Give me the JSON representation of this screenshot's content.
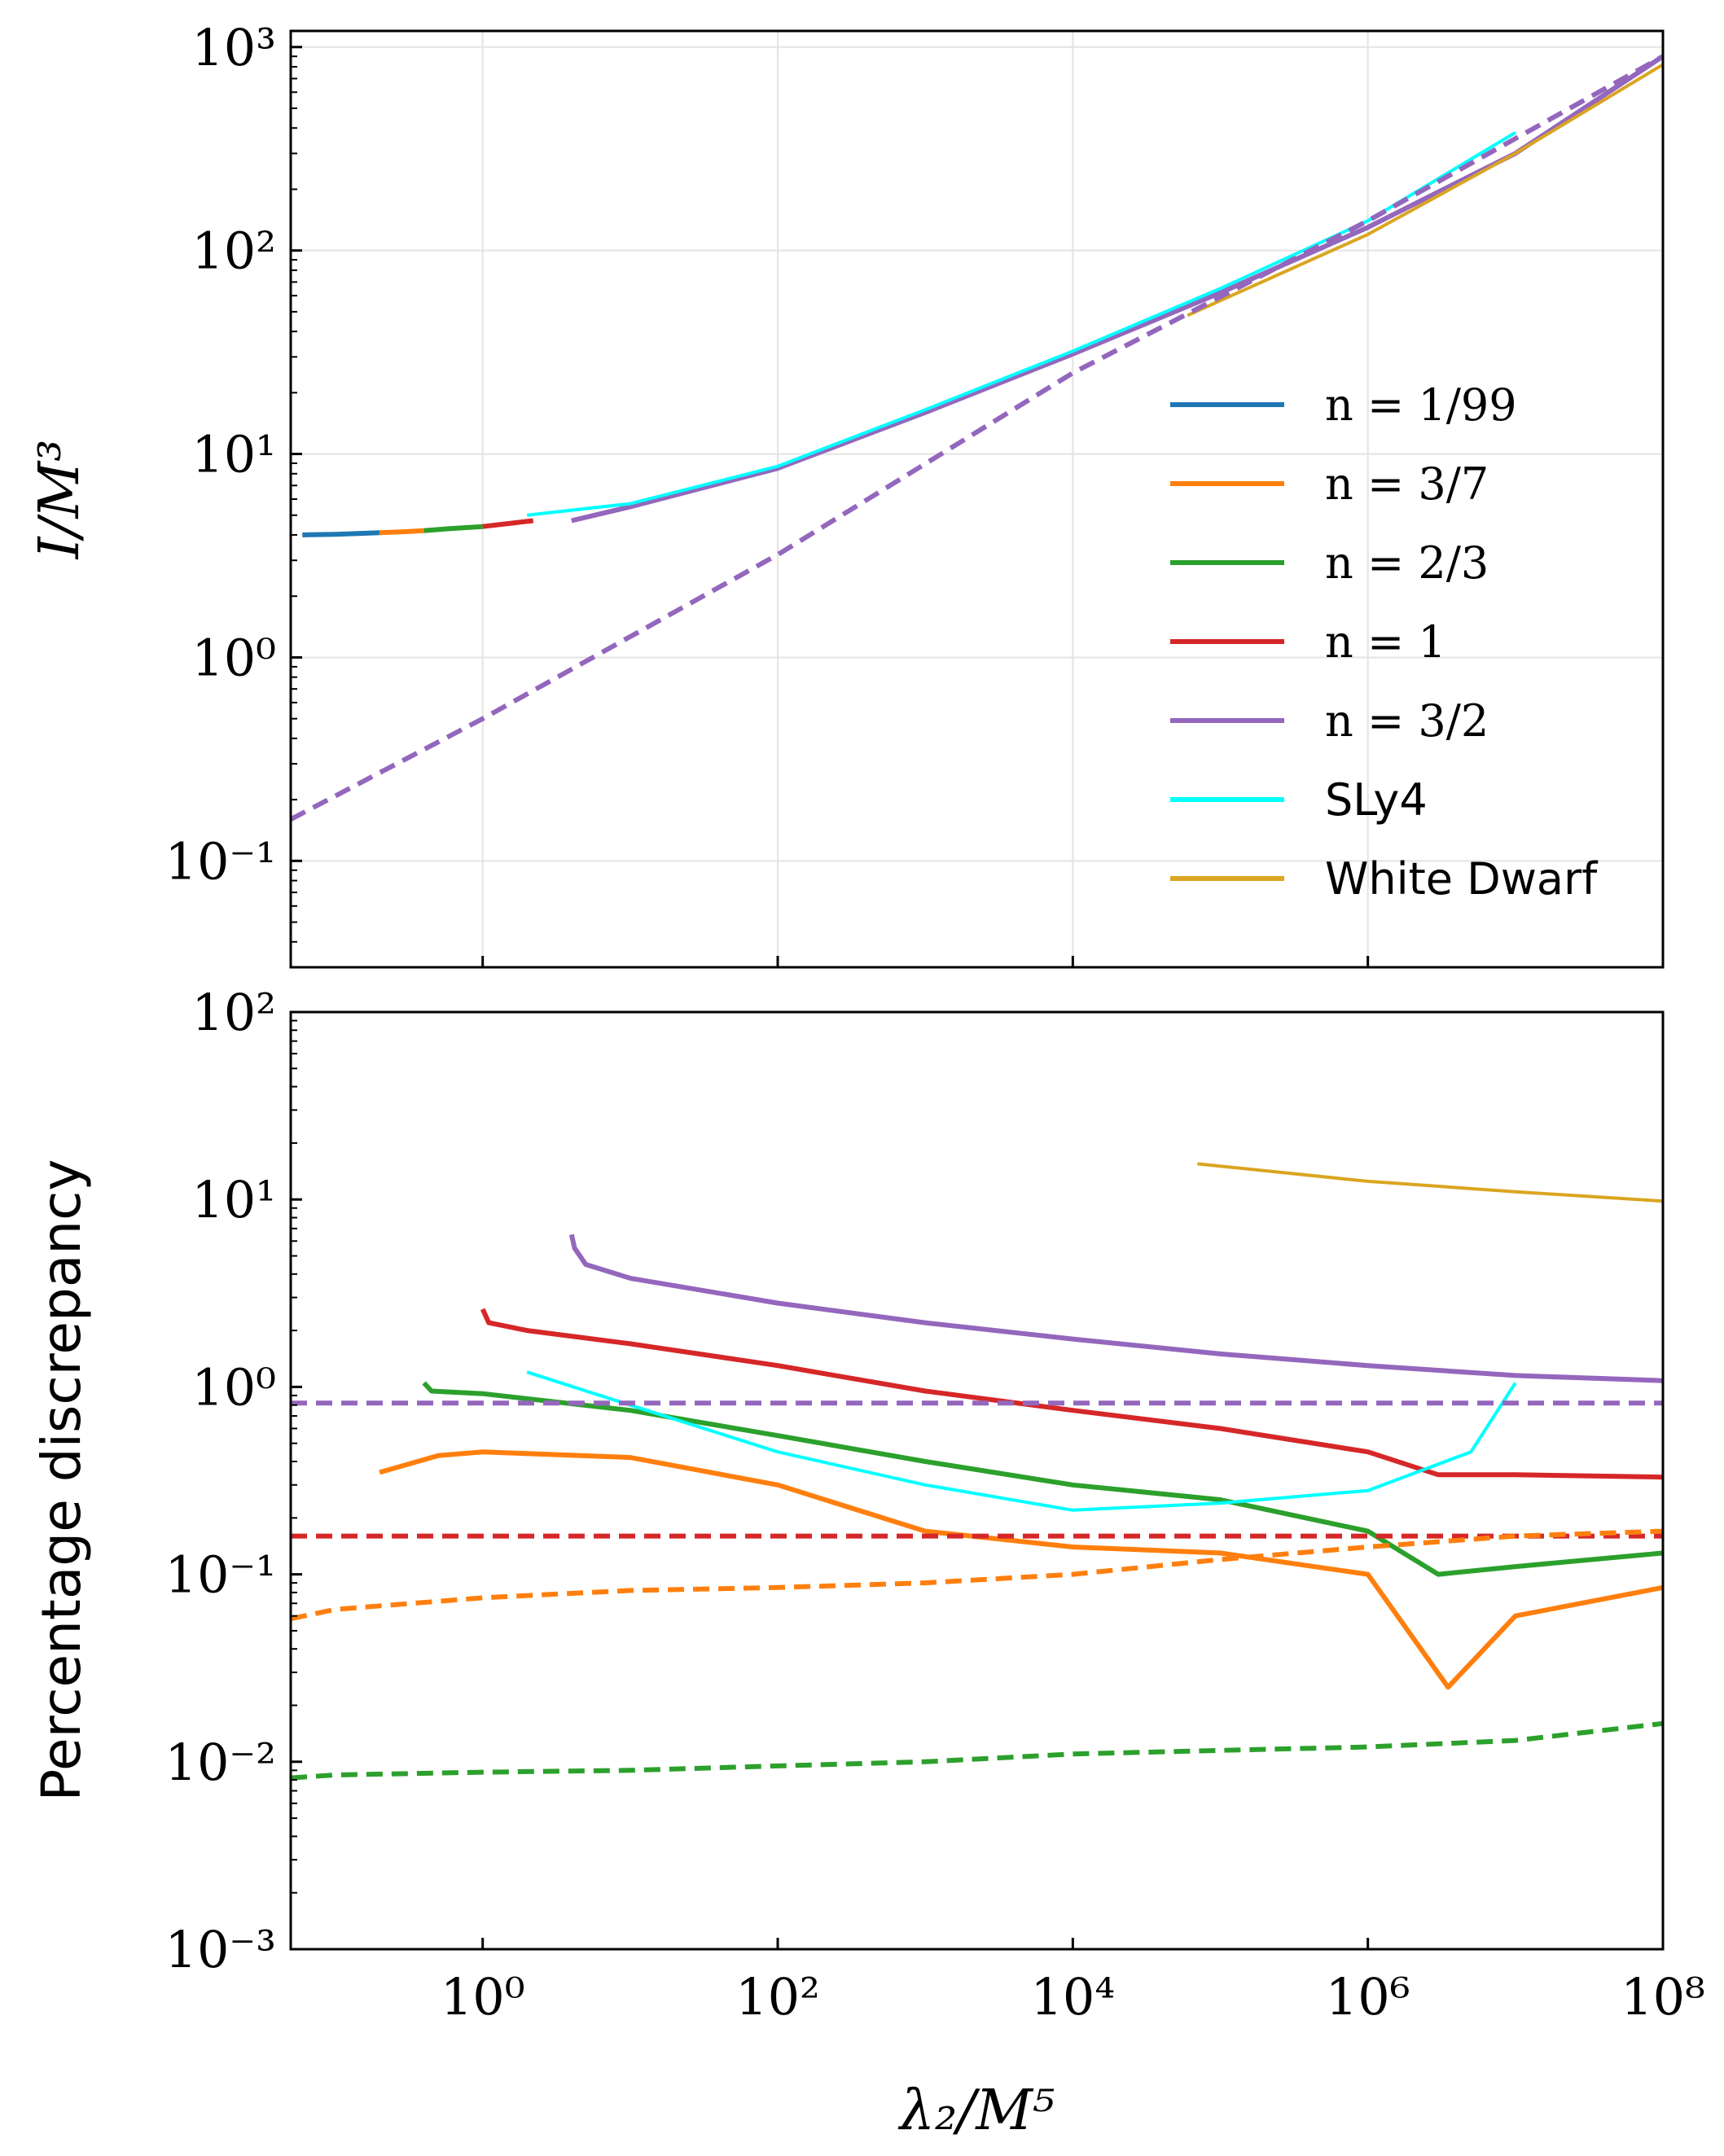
{
  "figure": {
    "x_axis_label": "λ₂/M⁵",
    "top_y_axis_label": "I/M³",
    "bottom_y_axis_label": "Percentage discrepancy"
  },
  "legend": [
    {
      "label": "n = 1/99",
      "color": "#1f77b4"
    },
    {
      "label": "n = 3/7",
      "color": "#ff7f0e"
    },
    {
      "label": "n = 2/3",
      "color": "#2ca02c"
    },
    {
      "label": "n = 1",
      "color": "#d62728"
    },
    {
      "label": "n = 3/2",
      "color": "#9467bd"
    },
    {
      "label": "SLy4",
      "color": "#00ffff"
    },
    {
      "label": "White Dwarf",
      "color": "#daa520"
    }
  ],
  "chart_data": [
    {
      "type": "line",
      "x_scale": "log",
      "y_scale": "log",
      "xlim": [
        0.05,
        100000000
      ],
      "ylim": [
        0.03,
        1200
      ],
      "grid": true,
      "legend_position": "center-right",
      "ylabel": "I/M³",
      "xlabel": "",
      "y_ticks": [
        "10⁻¹",
        "10⁰",
        "10¹",
        "10²",
        "10³"
      ],
      "series": [
        {
          "name": "n = 1/99",
          "color": "#1f77b4",
          "style": "solid",
          "x": [
            0.06,
            0.1,
            0.15,
            0.2
          ],
          "y": [
            4.0,
            4.03,
            4.07,
            4.1
          ]
        },
        {
          "name": "n = 3/7",
          "color": "#ff7f0e",
          "style": "solid",
          "x": [
            0.2,
            0.3,
            0.4
          ],
          "y": [
            4.1,
            4.15,
            4.2
          ]
        },
        {
          "name": "n = 2/3",
          "color": "#2ca02c",
          "style": "solid",
          "x": [
            0.4,
            0.6,
            1.0
          ],
          "y": [
            4.2,
            4.3,
            4.4
          ]
        },
        {
          "name": "n = 1",
          "color": "#d62728",
          "style": "solid",
          "x": [
            1.0,
            1.5,
            2.2
          ],
          "y": [
            4.4,
            4.55,
            4.7
          ]
        },
        {
          "name": "n = 3/2",
          "color": "#9467bd",
          "style": "solid",
          "x": [
            4,
            10,
            100,
            1000,
            10000,
            100000,
            1000000,
            10000000,
            100000000
          ],
          "y": [
            4.7,
            5.5,
            8.5,
            16,
            31,
            62,
            130,
            300,
            900
          ]
        },
        {
          "name": "SLy4",
          "color": "#00ffff",
          "style": "solid",
          "x": [
            2,
            10,
            100,
            1000,
            10000,
            100000,
            1000000,
            10000000
          ],
          "y": [
            5.0,
            5.7,
            8.7,
            16.5,
            32,
            65,
            140,
            380
          ]
        },
        {
          "name": "White Dwarf",
          "color": "#daa520",
          "style": "solid",
          "x": [
            60000,
            1000000,
            10000000,
            100000000
          ],
          "y": [
            48,
            120,
            300,
            820
          ]
        },
        {
          "name": "n = 3/2 fit",
          "color": "#9467bd",
          "style": "dashed",
          "x": [
            0.05,
            1,
            100,
            10000,
            1000000,
            100000000
          ],
          "y": [
            0.16,
            0.5,
            3.2,
            25,
            140,
            900
          ]
        }
      ]
    },
    {
      "type": "line",
      "x_scale": "log",
      "y_scale": "log",
      "xlim": [
        0.05,
        100000000
      ],
      "ylim": [
        0.001,
        100
      ],
      "grid": false,
      "xlabel": "λ₂/M⁵",
      "ylabel": "Percentage discrepancy",
      "x_ticks": [
        "10⁰",
        "10²",
        "10⁴",
        "10⁶",
        "10⁸"
      ],
      "y_ticks": [
        "10⁻³",
        "10⁻²",
        "10⁻¹",
        "10⁰",
        "10¹",
        "10²"
      ],
      "series": [
        {
          "name": "White Dwarf",
          "color": "#daa520",
          "style": "solid",
          "x": [
            70000,
            1000000,
            10000000,
            100000000
          ],
          "y": [
            15.5,
            12.5,
            11,
            9.8
          ]
        },
        {
          "name": "n = 3/2",
          "color": "#9467bd",
          "style": "solid",
          "x": [
            4,
            4.2,
            5,
            10,
            100,
            1000,
            10000,
            100000,
            1000000,
            10000000,
            100000000
          ],
          "y": [
            6.5,
            5.5,
            4.5,
            3.8,
            2.8,
            2.2,
            1.8,
            1.5,
            1.3,
            1.15,
            1.08
          ]
        },
        {
          "name": "n = 1",
          "color": "#d62728",
          "style": "solid",
          "x": [
            1.0,
            1.1,
            2,
            10,
            100,
            1000,
            10000,
            100000,
            1000000,
            3000000,
            10000000,
            100000000
          ],
          "y": [
            2.6,
            2.2,
            2.0,
            1.7,
            1.3,
            0.95,
            0.75,
            0.6,
            0.45,
            0.34,
            0.34,
            0.33
          ]
        },
        {
          "name": "n = 2/3",
          "color": "#2ca02c",
          "style": "solid",
          "x": [
            0.4,
            0.45,
            1,
            10,
            100,
            1000,
            10000,
            100000,
            1000000,
            3000000,
            10000000,
            100000000
          ],
          "y": [
            1.05,
            0.95,
            0.92,
            0.75,
            0.55,
            0.4,
            0.3,
            0.25,
            0.17,
            0.1,
            0.11,
            0.13
          ]
        },
        {
          "name": "n = 3/7",
          "color": "#ff7f0e",
          "style": "solid",
          "x": [
            0.2,
            0.5,
            1,
            10,
            100,
            1000,
            10000,
            100000,
            1000000,
            3500000,
            10000000,
            100000000
          ],
          "y": [
            0.35,
            0.43,
            0.45,
            0.42,
            0.3,
            0.17,
            0.14,
            0.13,
            0.1,
            0.025,
            0.06,
            0.085
          ]
        },
        {
          "name": "SLy4",
          "color": "#00ffff",
          "style": "solid",
          "x": [
            2,
            10,
            100,
            1000,
            10000,
            100000,
            1000000,
            5000000,
            10000000
          ],
          "y": [
            1.2,
            0.8,
            0.45,
            0.3,
            0.22,
            0.24,
            0.28,
            0.45,
            1.05
          ]
        },
        {
          "name": "n = 3/2 dashed",
          "color": "#9467bd",
          "style": "dashed",
          "x": [
            0.05,
            100000000
          ],
          "y": [
            0.82,
            0.82
          ]
        },
        {
          "name": "n = 1 dashed",
          "color": "#d62728",
          "style": "dashed",
          "x": [
            0.05,
            100000000
          ],
          "y": [
            0.16,
            0.16
          ]
        },
        {
          "name": "n = 3/7 dashed",
          "color": "#ff7f0e",
          "style": "dashed",
          "x": [
            0.05,
            0.1,
            1,
            10,
            100,
            1000,
            10000,
            100000,
            1000000,
            10000000,
            100000000
          ],
          "y": [
            0.058,
            0.065,
            0.075,
            0.082,
            0.085,
            0.09,
            0.1,
            0.12,
            0.14,
            0.16,
            0.17
          ]
        },
        {
          "name": "n = 2/3 dashed",
          "color": "#2ca02c",
          "style": "dashed",
          "x": [
            0.05,
            0.1,
            1,
            10,
            100,
            1000,
            10000,
            100000,
            1000000,
            10000000,
            100000000
          ],
          "y": [
            0.0082,
            0.0085,
            0.0088,
            0.009,
            0.0095,
            0.01,
            0.011,
            0.0115,
            0.012,
            0.013,
            0.016
          ]
        }
      ]
    }
  ]
}
